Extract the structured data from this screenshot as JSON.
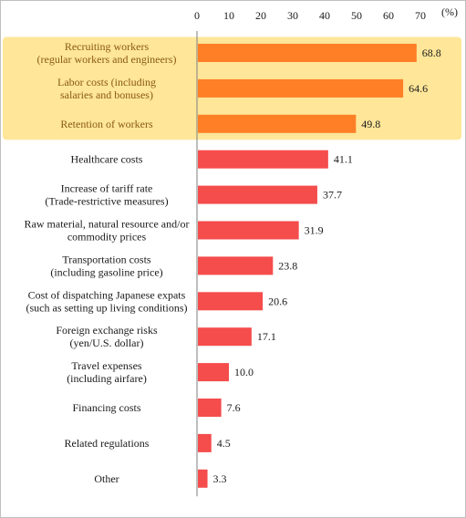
{
  "chart_data": {
    "type": "bar",
    "orientation": "horizontal",
    "unit": "(%)",
    "xlim": [
      0,
      70
    ],
    "ticks": [
      0,
      10,
      20,
      30,
      40,
      50,
      60,
      70
    ],
    "grid": false,
    "highlight_group": [
      0,
      1,
      2
    ],
    "colors": {
      "highlight_bar": "#FF7F27",
      "normal_bar": "#F54C4C",
      "highlight_band": "#FFE699"
    },
    "categories": [
      [
        "Recruiting workers",
        "(regular workers and engineers)"
      ],
      [
        "Labor costs (including",
        "salaries and bonuses)"
      ],
      [
        "Retention of workers"
      ],
      [
        "Healthcare costs"
      ],
      [
        "Increase of tariff rate",
        "(Trade-restrictive measures)"
      ],
      [
        "Raw material, natural resource and/or",
        "commodity prices"
      ],
      [
        "Transportation costs",
        "(including gasoline price)"
      ],
      [
        "Cost of dispatching Japanese expats",
        "(such as setting up living conditions)"
      ],
      [
        "Foreign exchange risks",
        "(yen/U.S. dollar)"
      ],
      [
        "Travel expenses",
        "(including airfare)"
      ],
      [
        "Financing costs"
      ],
      [
        "Related regulations"
      ],
      [
        "Other"
      ]
    ],
    "values": [
      68.8,
      64.6,
      49.8,
      41.1,
      37.7,
      31.9,
      23.8,
      20.6,
      17.1,
      10.0,
      7.6,
      4.5,
      3.3
    ],
    "value_labels": [
      "68.8",
      "64.6",
      "49.8",
      "41.1",
      "37.7",
      "31.9",
      "23.8",
      "20.6",
      "17.1",
      "10.0",
      "7.6",
      "4.5",
      "3.3"
    ]
  }
}
